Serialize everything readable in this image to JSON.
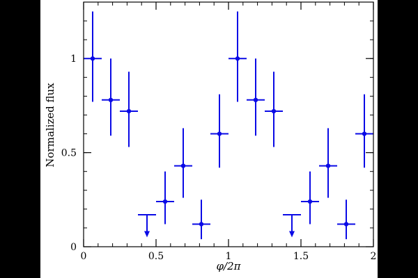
{
  "chart_data": {
    "type": "scatter",
    "xlabel": "φ/2π",
    "ylabel": "Normalized flux",
    "xlim": [
      0,
      2
    ],
    "ylim": [
      0,
      1.3
    ],
    "xticks": [
      0,
      0.5,
      1,
      1.5,
      2
    ],
    "xtick_labels": [
      "0",
      "0.5",
      "1",
      "1.5",
      "2"
    ],
    "yticks": [
      0,
      0.5,
      1
    ],
    "ytick_labels": [
      "0",
      "0.5",
      "1"
    ],
    "xminor_step": 0.1,
    "yminor_step": 0.1,
    "grid": false,
    "color": "#0a0ae6",
    "points": [
      {
        "x": 0.0625,
        "y": 1.0,
        "xerr": 0.0625,
        "ylo": 0.77,
        "yhi": 1.25
      },
      {
        "x": 0.1875,
        "y": 0.78,
        "xerr": 0.0625,
        "ylo": 0.59,
        "yhi": 1.0
      },
      {
        "x": 0.3125,
        "y": 0.72,
        "xerr": 0.0625,
        "ylo": 0.53,
        "yhi": 0.93
      },
      {
        "x": 0.4375,
        "y": 0.17,
        "xerr": 0.0625,
        "upper_limit": true,
        "arrow_to": 0.05
      },
      {
        "x": 0.5625,
        "y": 0.24,
        "xerr": 0.0625,
        "ylo": 0.12,
        "yhi": 0.4
      },
      {
        "x": 0.6875,
        "y": 0.43,
        "xerr": 0.0625,
        "ylo": 0.26,
        "yhi": 0.63
      },
      {
        "x": 0.8125,
        "y": 0.12,
        "xerr": 0.0625,
        "ylo": 0.04,
        "yhi": 0.25
      },
      {
        "x": 0.9375,
        "y": 0.6,
        "xerr": 0.0625,
        "ylo": 0.42,
        "yhi": 0.81
      },
      {
        "x": 1.0625,
        "y": 1.0,
        "xerr": 0.0625,
        "ylo": 0.77,
        "yhi": 1.25
      },
      {
        "x": 1.1875,
        "y": 0.78,
        "xerr": 0.0625,
        "ylo": 0.59,
        "yhi": 1.0
      },
      {
        "x": 1.3125,
        "y": 0.72,
        "xerr": 0.0625,
        "ylo": 0.53,
        "yhi": 0.93
      },
      {
        "x": 1.4375,
        "y": 0.17,
        "xerr": 0.0625,
        "upper_limit": true,
        "arrow_to": 0.05
      },
      {
        "x": 1.5625,
        "y": 0.24,
        "xerr": 0.0625,
        "ylo": 0.12,
        "yhi": 0.4
      },
      {
        "x": 1.6875,
        "y": 0.43,
        "xerr": 0.0625,
        "ylo": 0.26,
        "yhi": 0.63
      },
      {
        "x": 1.8125,
        "y": 0.12,
        "xerr": 0.0625,
        "ylo": 0.04,
        "yhi": 0.25
      },
      {
        "x": 1.9375,
        "y": 0.6,
        "xerr": 0.0625,
        "ylo": 0.42,
        "yhi": 0.81
      }
    ]
  }
}
